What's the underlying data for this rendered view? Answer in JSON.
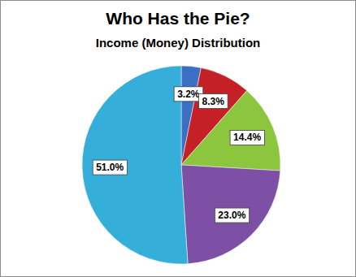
{
  "chart_data": {
    "type": "pie",
    "title": "Who Has the Pie?",
    "subtitle": "Income (Money) Distribution",
    "values": [
      3.2,
      8.3,
      14.4,
      23.0,
      51.0
    ],
    "value_labels": [
      "3.2%",
      "8.3%",
      "14.4%",
      "23.0%",
      "51.0%"
    ],
    "colors": [
      "#3a6fc4",
      "#c42025",
      "#8cc63e",
      "#7d4fa5",
      "#35afd9"
    ],
    "data_labels": true
  }
}
